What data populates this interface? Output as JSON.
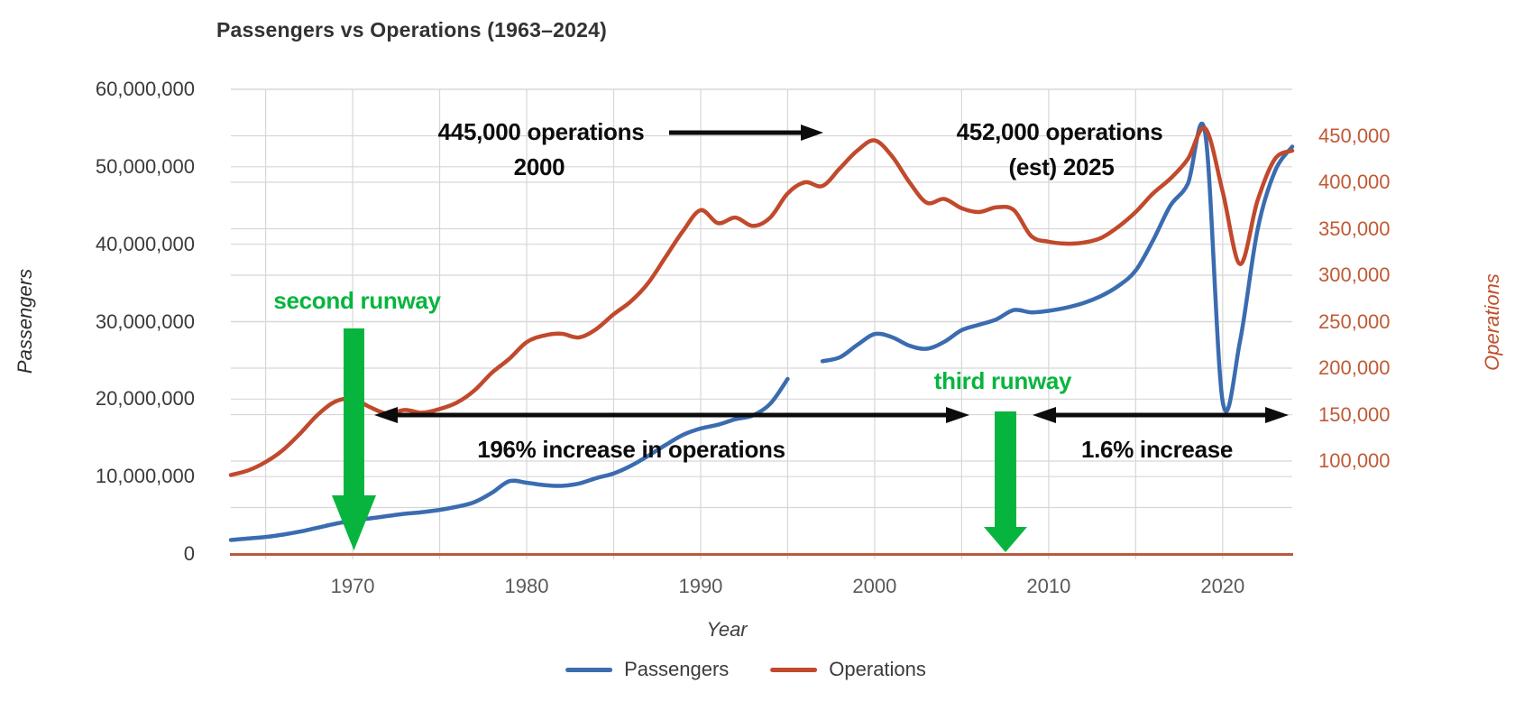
{
  "colors": {
    "passengers_blue": "#3b6cb0",
    "operations_red": "#c1492c",
    "green": "#07b53e",
    "black": "#0c0c0c",
    "baseline_brick": "#b75c3e",
    "grid": "#d7d7d7",
    "right_tick_text": "#c05a36"
  },
  "chart_data": {
    "type": "line",
    "title": "Passengers vs Operations (1963–2024)",
    "xlabel": "Year",
    "ylabel_left": "Passengers",
    "ylabel_right": "Operations",
    "xlim": [
      1963,
      2024
    ],
    "left_ylim": [
      0,
      60000000
    ],
    "right_ylim": [
      0,
      500000
    ],
    "grid": true,
    "legend_position": "bottom",
    "x": [
      1963,
      1964,
      1965,
      1966,
      1967,
      1968,
      1969,
      1970,
      1971,
      1972,
      1973,
      1974,
      1975,
      1976,
      1977,
      1978,
      1979,
      1980,
      1981,
      1982,
      1983,
      1984,
      1985,
      1986,
      1987,
      1988,
      1989,
      1990,
      1991,
      1992,
      1993,
      1994,
      1995,
      1996,
      1997,
      1998,
      1999,
      2000,
      2001,
      2002,
      2003,
      2004,
      2005,
      2006,
      2007,
      2008,
      2009,
      2010,
      2011,
      2012,
      2013,
      2014,
      2015,
      2016,
      2017,
      2018,
      2019,
      2020,
      2021,
      2022,
      2023,
      2024
    ],
    "series": [
      {
        "name": "Passengers",
        "axis": "left",
        "color": "#3b6cb0",
        "values": [
          1800000,
          2000000,
          2200000,
          2500000,
          2900000,
          3400000,
          3900000,
          4300000,
          4600000,
          4900000,
          5200000,
          5400000,
          5700000,
          6100000,
          6700000,
          7900000,
          9400000,
          9200000,
          8900000,
          8800000,
          9100000,
          9800000,
          10400000,
          11400000,
          12700000,
          14100000,
          15400000,
          16200000,
          16700000,
          17400000,
          17900000,
          19400000,
          22600000,
          null,
          24900000,
          25400000,
          27000000,
          28400000,
          28000000,
          26900000,
          26500000,
          27400000,
          28900000,
          29600000,
          30300000,
          31500000,
          31200000,
          31400000,
          31800000,
          32400000,
          33300000,
          34600000,
          36600000,
          40500000,
          45000000,
          47800000,
          54300000,
          19700000,
          27500000,
          41800000,
          49400000,
          52600000
        ]
      },
      {
        "name": "Operations",
        "axis": "right",
        "color": "#c1492c",
        "values": [
          85000,
          90000,
          99000,
          112000,
          130000,
          150000,
          164000,
          167000,
          158000,
          151000,
          155000,
          152000,
          156000,
          163000,
          176000,
          195000,
          210000,
          228000,
          235000,
          237000,
          233000,
          242000,
          258000,
          272000,
          292000,
          320000,
          348000,
          370000,
          356000,
          362000,
          353000,
          362000,
          388000,
          400000,
          396000,
          415000,
          434000,
          445000,
          428000,
          400000,
          378000,
          382000,
          372000,
          368000,
          373000,
          370000,
          342000,
          336000,
          334000,
          335000,
          340000,
          352000,
          368000,
          388000,
          404000,
          425000,
          458000,
          390000,
          312000,
          380000,
          425000,
          434000
        ]
      }
    ]
  },
  "chart": {
    "left_axis": {
      "ticks": [
        {
          "value": 0,
          "label": "0"
        },
        {
          "value": 10000000,
          "label": "10,000,000"
        },
        {
          "value": 20000000,
          "label": "20,000,000"
        },
        {
          "value": 30000000,
          "label": "30,000,000"
        },
        {
          "value": 40000000,
          "label": "40,000,000"
        },
        {
          "value": 50000000,
          "label": "50,000,000"
        },
        {
          "value": 60000000,
          "label": "60,000,000"
        }
      ]
    },
    "right_axis": {
      "grid_step": 50000,
      "ticks": [
        {
          "value": 100000,
          "label": "100,000"
        },
        {
          "value": 150000,
          "label": "150,000"
        },
        {
          "value": 200000,
          "label": "200,000"
        },
        {
          "value": 250000,
          "label": "250,000"
        },
        {
          "value": 300000,
          "label": "300,000"
        },
        {
          "value": 350000,
          "label": "350,000"
        },
        {
          "value": 400000,
          "label": "400,000"
        },
        {
          "value": 450000,
          "label": "450,000"
        }
      ]
    },
    "x_axis": {
      "grid_years": [
        1965,
        1970,
        1975,
        1980,
        1985,
        1990,
        1995,
        2000,
        2005,
        2010,
        2015,
        2020
      ],
      "ticks": [
        {
          "value": 1970,
          "label": "1970"
        },
        {
          "value": 1980,
          "label": "1980"
        },
        {
          "value": 1990,
          "label": "1990"
        },
        {
          "value": 2000,
          "label": "2000"
        },
        {
          "value": 2010,
          "label": "2010"
        },
        {
          "value": 2020,
          "label": "2020"
        }
      ]
    }
  },
  "annotations": {
    "ops_2000_line1": "445,000 operations",
    "ops_2000_line2": "2000",
    "ops_2025_line1": "452,000 operations",
    "ops_2025_line2": "(est) 2025",
    "increase_196": "196% increase in operations",
    "increase_16": "1.6% increase",
    "second_runway": "second runway",
    "third_runway": "third runway"
  }
}
